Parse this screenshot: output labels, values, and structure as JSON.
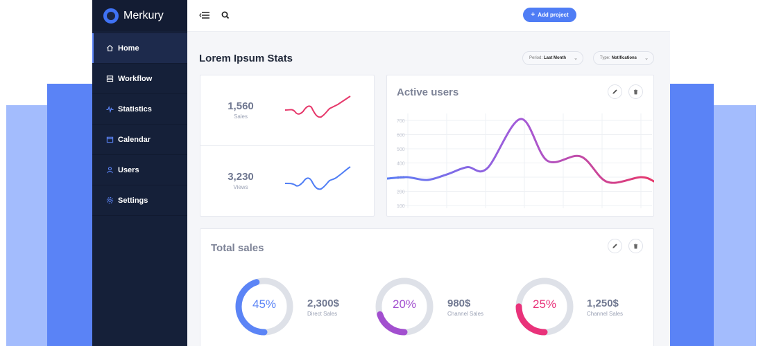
{
  "brand": {
    "name": "Merkury"
  },
  "sidebar": {
    "items": [
      {
        "label": "Home",
        "icon": "home-icon",
        "active": true
      },
      {
        "label": "Workflow",
        "icon": "workflow-icon"
      },
      {
        "label": "Statistics",
        "icon": "statistics-icon"
      },
      {
        "label": "Calendar",
        "icon": "calendar-icon"
      },
      {
        "label": "Users",
        "icon": "user-icon"
      },
      {
        "label": "Settings",
        "icon": "settings-icon"
      }
    ]
  },
  "topbar": {
    "add_project_label": "Add project"
  },
  "page": {
    "title": "Lorem Ipsum Stats"
  },
  "filters": {
    "period": {
      "label": "Period:",
      "value": "Last Month"
    },
    "type": {
      "label": "Type:",
      "value": "Notifications"
    }
  },
  "stats": [
    {
      "value": "1,560",
      "label": "Sales",
      "color": "#e6376a"
    },
    {
      "value": "3,230",
      "label": "Views",
      "color": "#4f7df5"
    }
  ],
  "active_users": {
    "title": "Active users",
    "chart_data": {
      "type": "line",
      "y_ticks": [
        100,
        200,
        300,
        400,
        500,
        600,
        700
      ],
      "ylim": [
        100,
        700
      ],
      "points": [
        [
          0,
          290
        ],
        [
          6,
          300
        ],
        [
          12,
          280
        ],
        [
          18,
          320
        ],
        [
          24,
          370
        ],
        [
          30,
          362
        ],
        [
          40,
          710
        ],
        [
          48,
          416
        ],
        [
          58,
          446
        ],
        [
          66,
          266
        ],
        [
          76,
          300
        ],
        [
          80,
          270
        ]
      ],
      "x_range": [
        0,
        80
      ],
      "gradient": [
        "#5a7cf5",
        "#a45ad8",
        "#e6376a"
      ],
      "grid": true
    }
  },
  "total_sales": {
    "title": "Total sales",
    "items": [
      {
        "percent": "45%",
        "fraction": 0.45,
        "value": "2,300$",
        "label": "Direct Sales",
        "color": "#5b84f6"
      },
      {
        "percent": "20%",
        "fraction": 0.2,
        "value": "980$",
        "label": "Channel Sales",
        "color": "#a24fcf"
      },
      {
        "percent": "25%",
        "fraction": 0.25,
        "value": "1,250$",
        "label": "Channel Sales",
        "color": "#e9327a"
      }
    ]
  }
}
